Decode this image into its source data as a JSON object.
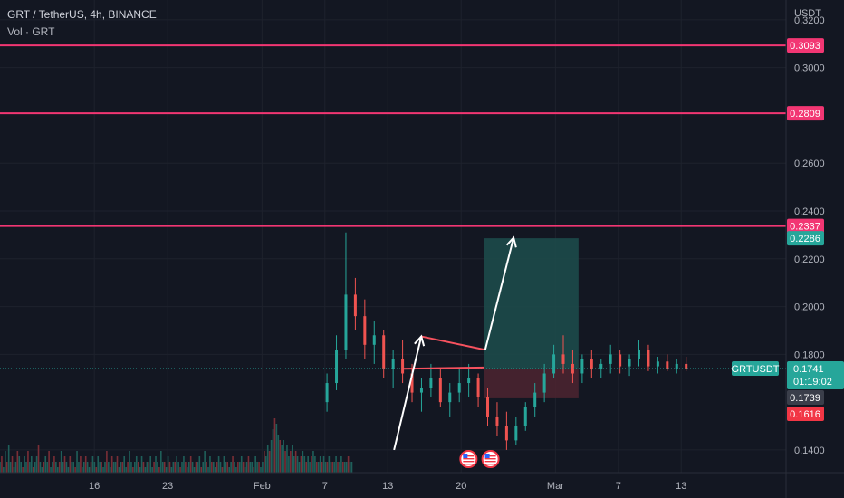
{
  "header": {
    "symbol_line": "GRT / TetherUS, 4h, BINANCE",
    "volume_line": "Vol · GRT"
  },
  "price_axis_title": "USDT",
  "colors": {
    "background": "#131722",
    "grid": "#1e222d",
    "up": "#26a69a",
    "down": "#ef5350",
    "level_line": "#f23673",
    "triangle": "#f7525f",
    "arrow": "#ffffff",
    "target_zone": "#1d4a4a",
    "stop_zone": "#4a2430",
    "current_price": "#26a69a",
    "axis_text": "#b2b5be"
  },
  "chart_data": {
    "type": "candlestick",
    "title": "GRT / TetherUS, 4h, BINANCE",
    "ylabel": "USDT",
    "ylim": [
      0.1305,
      0.3283
    ],
    "y_ticks": [
      "0.3200",
      "0.3000",
      "0.2600",
      "0.2400",
      "0.2200",
      "0.2000",
      "0.1800",
      "0.1400"
    ],
    "x_ticks": [
      "16",
      "23",
      "Feb",
      "7",
      "13",
      "20",
      "Mar",
      "7",
      "13"
    ],
    "x_tick_days": [
      -16,
      -9,
      0,
      6,
      12,
      19,
      28,
      34,
      40
    ],
    "x_range_days": [
      -25,
      50
    ],
    "grid": true,
    "horizontal_levels": [
      {
        "price": 0.3093,
        "label": "0.3093"
      },
      {
        "price": 0.2809,
        "label": "0.2809"
      },
      {
        "price": 0.2337,
        "label": "0.2337"
      }
    ],
    "triangle": {
      "upper": [
        [
          15.2,
          0.1875
        ],
        [
          21.2,
          0.182
        ]
      ],
      "lower": [
        [
          13.4,
          0.174
        ],
        [
          21.2,
          0.1745
        ]
      ]
    },
    "arrows": [
      {
        "from": [
          12.6,
          0.14
        ],
        "to": [
          15.2,
          0.1875
        ]
      },
      {
        "from": [
          21.3,
          0.182
        ],
        "to": [
          24.0,
          0.2288
        ]
      }
    ],
    "position": {
      "day_start": 21.2,
      "day_end": 30.2,
      "entry": 0.1741,
      "target": 0.2286,
      "stop": 0.1616
    },
    "price_labels": [
      {
        "value": "0.2286",
        "price": 0.2286,
        "color": "#26a69a"
      },
      {
        "value": "0.1739",
        "price": 0.173,
        "color": "#3a3e4a"
      },
      {
        "value": "0.1616",
        "price": 0.1616,
        "color": "#f23645"
      }
    ],
    "current_price": {
      "symbol": "GRTUSDT",
      "value": "0.1741",
      "countdown": "01:19:02",
      "price": 0.1741
    },
    "candles": {
      "day_start": 6.2,
      "day_step": 0.167,
      "ohlc": [
        [
          0.16,
          0.172,
          0.156,
          0.168
        ],
        [
          0.168,
          0.188,
          0.165,
          0.182
        ],
        [
          0.182,
          0.231,
          0.178,
          0.205
        ],
        [
          0.205,
          0.212,
          0.19,
          0.196
        ],
        [
          0.196,
          0.203,
          0.178,
          0.184
        ],
        [
          0.184,
          0.194,
          0.176,
          0.188
        ],
        [
          0.188,
          0.19,
          0.17,
          0.174
        ],
        [
          0.174,
          0.182,
          0.166,
          0.178
        ],
        [
          0.178,
          0.186,
          0.168,
          0.172
        ],
        [
          0.172,
          0.176,
          0.16,
          0.164
        ],
        [
          0.164,
          0.17,
          0.156,
          0.166
        ],
        [
          0.166,
          0.176,
          0.162,
          0.17
        ],
        [
          0.17,
          0.174,
          0.158,
          0.16
        ],
        [
          0.16,
          0.168,
          0.154,
          0.164
        ],
        [
          0.164,
          0.174,
          0.16,
          0.168
        ],
        [
          0.168,
          0.176,
          0.162,
          0.17
        ],
        [
          0.17,
          0.172,
          0.158,
          0.162
        ],
        [
          0.162,
          0.166,
          0.15,
          0.154
        ],
        [
          0.154,
          0.16,
          0.146,
          0.15
        ],
        [
          0.15,
          0.156,
          0.14,
          0.144
        ],
        [
          0.144,
          0.154,
          0.142,
          0.15
        ],
        [
          0.15,
          0.16,
          0.148,
          0.158
        ],
        [
          0.158,
          0.168,
          0.154,
          0.164
        ],
        [
          0.164,
          0.176,
          0.16,
          0.172
        ],
        [
          0.172,
          0.184,
          0.17,
          0.18
        ],
        [
          0.18,
          0.188,
          0.172,
          0.176
        ],
        [
          0.176,
          0.182,
          0.168,
          0.172
        ],
        [
          0.172,
          0.18,
          0.168,
          0.178
        ],
        [
          0.178,
          0.182,
          0.17,
          0.174
        ],
        [
          0.174,
          0.178,
          0.17,
          0.176
        ],
        [
          0.176,
          0.184,
          0.172,
          0.18
        ],
        [
          0.18,
          0.182,
          0.172,
          0.175
        ],
        [
          0.175,
          0.18,
          0.171,
          0.178
        ],
        [
          0.178,
          0.186,
          0.175,
          0.182
        ],
        [
          0.182,
          0.184,
          0.173,
          0.175
        ],
        [
          0.175,
          0.179,
          0.172,
          0.177
        ],
        [
          0.177,
          0.18,
          0.173,
          0.174
        ],
        [
          0.174,
          0.178,
          0.172,
          0.176
        ],
        [
          0.176,
          0.179,
          0.173,
          0.174
        ]
      ]
    },
    "volume": {
      "day_start": -25,
      "day_step": 0.167,
      "max_volume": 10,
      "values": [
        2,
        3,
        1,
        4,
        2,
        5,
        2,
        3,
        1,
        2,
        4,
        3,
        2,
        1,
        3,
        2,
        4,
        2,
        3,
        1,
        2,
        3,
        5,
        2,
        1,
        2,
        3,
        2,
        4,
        1,
        2,
        3,
        2,
        1,
        2,
        4,
        2,
        3,
        2,
        1,
        3,
        2,
        2,
        1,
        4,
        2,
        3,
        1,
        2,
        3,
        2,
        1,
        2,
        3,
        2,
        1,
        3,
        2,
        2,
        1,
        2,
        4,
        2,
        1,
        3,
        2,
        2,
        3,
        1,
        2,
        2,
        3,
        1,
        2,
        4,
        2,
        1,
        2,
        3,
        2,
        1,
        3,
        2,
        1,
        2,
        2,
        3,
        1,
        2,
        3,
        2,
        1,
        4,
        2,
        2,
        1,
        3,
        2,
        1,
        2,
        2,
        3,
        2,
        1,
        2,
        3,
        2,
        1,
        2,
        3,
        2,
        1,
        2,
        2,
        3,
        1,
        2,
        4,
        2,
        1,
        3,
        2,
        2,
        1,
        2,
        3,
        2,
        1,
        3,
        2,
        2,
        1,
        2,
        3,
        2,
        1,
        2,
        2,
        3,
        2,
        1,
        2,
        3,
        2,
        2,
        1,
        3,
        2,
        2,
        1,
        2,
        4,
        3,
        5,
        4,
        6,
        8,
        10,
        9,
        7,
        6,
        5,
        6,
        4,
        5,
        3,
        4,
        5,
        3,
        4,
        3,
        2,
        3,
        4,
        3,
        2,
        3,
        2,
        3,
        4,
        3,
        2,
        2,
        3,
        2,
        3,
        2,
        2,
        3,
        2,
        2,
        2,
        3,
        2,
        2,
        3,
        2,
        2,
        2,
        3,
        2,
        2
      ]
    },
    "event_markers": [
      {
        "day": 19.7
      },
      {
        "day": 21.8
      }
    ]
  }
}
